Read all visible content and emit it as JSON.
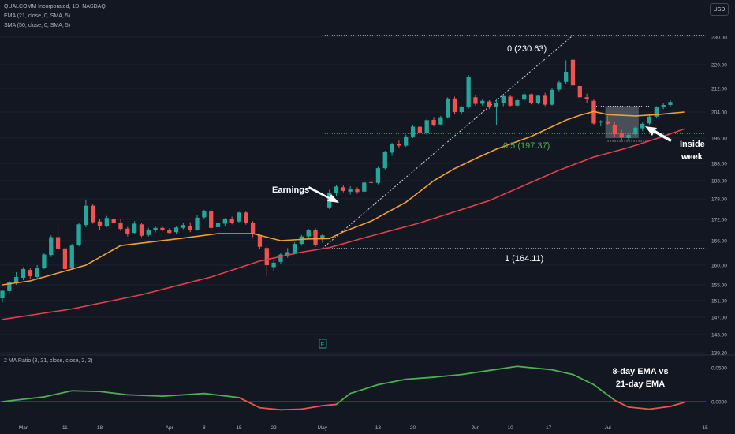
{
  "legend": {
    "symbol_line": "QUALCOMM Incorporated, 1D, NASDAQ",
    "ema_line": "EMA (21, close, 0, SMA, 5)",
    "sma_line": "SMA (50, close, 0, SMA, 5)",
    "indicator_line": "2 MA Ratio (8, 21, close, close, 2, 2)"
  },
  "currency_label": "USD",
  "colors": {
    "background": "#131722",
    "up": "#26a69a",
    "down": "#ef5350",
    "ema21": "#f0a030",
    "sma50": "#e0404a",
    "ratio": "#4caf50",
    "ratio_negative": "#ef5350",
    "zero_line": "#2962ff",
    "fib_level": "#4caf50",
    "earnings_marker": "#26a69a"
  },
  "chart_data": {
    "type": "candlestick",
    "price_axis_ticks": [
      "230.00",
      "220.00",
      "212.00",
      "204.00",
      "196.00",
      "188.00",
      "183.00",
      "178.00",
      "172.00",
      "166.00",
      "160.00",
      "155.00",
      "151.00",
      "147.00",
      "143.00",
      "139.20"
    ],
    "indicator_axis_ticks": [
      "0.0500",
      "0.0000"
    ],
    "x_tick_labels": [
      "Mar",
      "11",
      "18",
      "Apr",
      "8",
      "15",
      "22",
      "May",
      "13",
      "20",
      "Jun",
      "10",
      "17",
      "Jul",
      "15"
    ],
    "candles": [
      [
        "Feb 27",
        151.6,
        153.8,
        150.6,
        153.5
      ],
      [
        "Feb 28",
        153.4,
        156.0,
        152.8,
        155.8
      ],
      [
        "Feb 29",
        155.6,
        158.2,
        155.0,
        157.0
      ],
      [
        "Mar 1",
        156.8,
        159.5,
        156.2,
        159.0
      ],
      [
        "Mar 4",
        158.8,
        159.4,
        156.5,
        157.2
      ],
      [
        "Mar 5",
        157.0,
        160.0,
        156.4,
        159.2
      ],
      [
        "Mar 6",
        159.4,
        163.0,
        159.0,
        162.6
      ],
      [
        "Mar 7",
        162.5,
        167.5,
        162.0,
        167.0
      ],
      [
        "Mar 8",
        167.0,
        170.2,
        163.5,
        164.0
      ],
      [
        "Mar 11",
        164.1,
        164.4,
        158.5,
        159.0
      ],
      [
        "Mar 12",
        159.2,
        165.2,
        158.8,
        164.8
      ],
      [
        "Mar 13",
        165.0,
        171.0,
        164.6,
        170.6
      ],
      [
        "Mar 14",
        170.4,
        177.8,
        169.8,
        176.0
      ],
      [
        "Mar 15",
        176.0,
        176.5,
        170.8,
        171.2
      ],
      [
        "Mar 18",
        171.4,
        172.2,
        169.0,
        170.0
      ],
      [
        "Mar 19",
        170.2,
        173.0,
        169.8,
        172.4
      ],
      [
        "Mar 20",
        172.0,
        172.3,
        170.8,
        171.0
      ],
      [
        "Mar 21",
        171.0,
        172.0,
        168.7,
        169.3
      ],
      [
        "Mar 22",
        169.4,
        169.9,
        167.2,
        168.0
      ],
      [
        "Mar 25",
        168.2,
        171.5,
        167.8,
        170.8
      ],
      [
        "Mar 26",
        170.6,
        170.9,
        167.0,
        167.4
      ],
      [
        "Mar 27",
        167.6,
        169.6,
        167.2,
        169.0
      ],
      [
        "Mar 28",
        169.0,
        170.2,
        168.3,
        169.6
      ],
      [
        "Mar 29",
        169.6,
        170.1,
        168.6,
        169.0
      ],
      [
        "Apr 1",
        169.0,
        169.5,
        167.8,
        168.2
      ],
      [
        "Apr 2",
        168.4,
        170.0,
        168.0,
        169.7
      ],
      [
        "Apr 3",
        169.6,
        171.0,
        169.2,
        170.4
      ],
      [
        "Apr 4",
        170.2,
        171.2,
        168.4,
        169.0
      ],
      [
        "Apr 5",
        169.0,
        173.2,
        168.8,
        172.5
      ],
      [
        "Apr 8",
        172.6,
        174.8,
        172.2,
        174.5
      ],
      [
        "Apr 9",
        174.4,
        175.0,
        169.0,
        169.6
      ],
      [
        "Apr 10",
        169.8,
        171.2,
        168.8,
        170.9
      ],
      [
        "Apr 11",
        170.8,
        172.4,
        170.2,
        172.2
      ],
      [
        "Apr 12",
        172.0,
        172.8,
        170.6,
        171.0
      ],
      [
        "Apr 15",
        171.4,
        174.2,
        171.0,
        174.0
      ],
      [
        "Apr 16",
        174.0,
        174.5,
        170.5,
        170.9
      ],
      [
        "Apr 17",
        171.0,
        171.5,
        167.0,
        167.8
      ],
      [
        "Apr 18",
        167.6,
        168.0,
        164.0,
        164.5
      ],
      [
        "Apr 19",
        164.2,
        164.6,
        157.2,
        160.0
      ],
      [
        "Apr 22",
        159.5,
        161.2,
        158.5,
        160.6
      ],
      [
        "Apr 23",
        160.8,
        163.0,
        160.4,
        162.6
      ],
      [
        "Apr 24",
        162.4,
        164.2,
        161.8,
        163.2
      ],
      [
        "Apr 25",
        163.0,
        165.6,
        162.6,
        165.2
      ],
      [
        "Apr 26",
        165.2,
        167.6,
        164.8,
        167.2
      ],
      [
        "Apr 29",
        167.2,
        169.3,
        166.6,
        169.0
      ],
      [
        "Apr 30",
        169.0,
        169.5,
        164.5,
        165.0
      ],
      [
        "May 1",
        166.4,
        168.0,
        165.5,
        167.5
      ],
      [
        "May 2",
        175.5,
        180.5,
        175.0,
        179.6
      ],
      [
        "May 3",
        179.6,
        181.8,
        178.8,
        181.4
      ],
      [
        "May 6",
        181.2,
        181.8,
        179.8,
        180.2
      ],
      [
        "May 7",
        180.0,
        181.5,
        179.2,
        180.6
      ],
      [
        "May 8",
        180.6,
        181.2,
        179.4,
        179.9
      ],
      [
        "May 9",
        180.0,
        183.0,
        179.8,
        182.5
      ],
      [
        "May 10",
        182.6,
        183.6,
        181.8,
        182.4
      ],
      [
        "May 13",
        182.4,
        187.0,
        182.0,
        186.6
      ],
      [
        "May 14",
        186.6,
        192.0,
        186.2,
        191.5
      ],
      [
        "May 15",
        191.4,
        194.5,
        190.4,
        194.0
      ],
      [
        "May 16",
        194.0,
        195.2,
        193.0,
        193.6
      ],
      [
        "May 17",
        193.6,
        197.0,
        193.2,
        196.5
      ],
      [
        "May 20",
        196.5,
        200.0,
        196.0,
        199.5
      ],
      [
        "May 21",
        199.5,
        199.8,
        197.0,
        197.5
      ],
      [
        "May 22",
        197.4,
        202.0,
        197.0,
        201.5
      ],
      [
        "May 23",
        201.6,
        202.5,
        199.6,
        200.0
      ],
      [
        "May 24",
        200.2,
        202.8,
        199.8,
        202.4
      ],
      [
        "May 28",
        202.4,
        209.0,
        202.0,
        208.6
      ],
      [
        "May 29",
        208.6,
        209.2,
        203.5,
        204.0
      ],
      [
        "May 30",
        204.0,
        206.0,
        203.4,
        205.6
      ],
      [
        "May 31",
        205.6,
        216.5,
        205.2,
        215.8
      ],
      [
        "Jun 3",
        209.0,
        209.6,
        206.2,
        206.8
      ],
      [
        "Jun 4",
        206.8,
        208.5,
        206.2,
        207.8
      ],
      [
        "Jun 5",
        207.6,
        208.0,
        205.0,
        205.6
      ],
      [
        "Jun 6",
        205.8,
        208.6,
        200.0,
        207.0
      ],
      [
        "Jun 7",
        207.0,
        210.0,
        206.0,
        209.4
      ],
      [
        "Jun 10",
        209.2,
        209.8,
        205.6,
        206.2
      ],
      [
        "Jun 11",
        206.2,
        208.6,
        205.8,
        208.0
      ],
      [
        "Jun 12",
        208.2,
        210.6,
        207.6,
        210.0
      ],
      [
        "Jun 13",
        210.0,
        210.2,
        206.6,
        207.2
      ],
      [
        "Jun 14",
        207.2,
        209.8,
        206.6,
        209.5
      ],
      [
        "Jun 17",
        209.5,
        210.5,
        206.0,
        206.5
      ],
      [
        "Jun 18",
        206.5,
        212.2,
        206.2,
        211.5
      ],
      [
        "Jun 20",
        211.6,
        214.5,
        211.0,
        214.0
      ],
      [
        "Jun 21",
        214.2,
        221.6,
        213.6,
        217.6
      ],
      [
        "Jun 24",
        221.8,
        224.2,
        212.5,
        213.0
      ],
      [
        "Jun 25",
        212.8,
        213.2,
        208.5,
        209.0
      ],
      [
        "Jun 26",
        209.0,
        210.2,
        207.2,
        208.5
      ],
      [
        "Jun 27",
        207.8,
        208.4,
        200.0,
        200.5
      ],
      [
        "Jun 28",
        200.8,
        201.5,
        199.6,
        201.2
      ],
      [
        "Jul 1",
        201.2,
        202.8,
        200.0,
        200.4
      ],
      [
        "Jul 2",
        200.0,
        200.8,
        196.5,
        197.2
      ],
      [
        "Jul 3",
        197.4,
        198.5,
        195.5,
        196.2
      ],
      [
        "Jul 5",
        196.0,
        197.4,
        195.0,
        197.0
      ],
      [
        "Jul 8",
        197.2,
        199.6,
        196.8,
        199.2
      ],
      [
        "Jul 9",
        199.0,
        200.8,
        198.2,
        200.4
      ],
      [
        "Jul 10",
        200.5,
        203.2,
        200.0,
        202.6
      ],
      [
        "Jul 11",
        202.6,
        206.0,
        202.2,
        205.6
      ],
      [
        "Jul 12",
        205.6,
        207.0,
        205.0,
        206.4
      ],
      [
        "Jul 15",
        206.4,
        208.0,
        205.8,
        207.4
      ]
    ],
    "ema21": [
      [
        0,
        155.0
      ],
      [
        4,
        156.0
      ],
      [
        12,
        160.0
      ],
      [
        17,
        164.8
      ],
      [
        25,
        166.5
      ],
      [
        31,
        168.0
      ],
      [
        36,
        168.0
      ],
      [
        40,
        166.0
      ],
      [
        44,
        166.5
      ],
      [
        47,
        166.6
      ],
      [
        49,
        168.5
      ],
      [
        53,
        171.5
      ],
      [
        58,
        177.0
      ],
      [
        62,
        183.0
      ],
      [
        65,
        186.5
      ],
      [
        68,
        189.5
      ],
      [
        71,
        192.5
      ],
      [
        76,
        196.5
      ],
      [
        81,
        201.5
      ],
      [
        83,
        203.0
      ],
      [
        85,
        204.2
      ],
      [
        87,
        203.2
      ],
      [
        91,
        202.8
      ],
      [
        94,
        203.2
      ],
      [
        98,
        204.0
      ]
    ],
    "sma50": [
      [
        0,
        146.5
      ],
      [
        10,
        149.0
      ],
      [
        20,
        152.5
      ],
      [
        30,
        157.0
      ],
      [
        37,
        161.0
      ],
      [
        43,
        163.2
      ],
      [
        47,
        164.3
      ],
      [
        52,
        166.8
      ],
      [
        60,
        171.0
      ],
      [
        70,
        177.5
      ],
      [
        80,
        186.0
      ],
      [
        85,
        190.0
      ],
      [
        90,
        193.0
      ],
      [
        95,
        196.5
      ],
      [
        98,
        198.8
      ]
    ],
    "ratio": [
      [
        0,
        0.0
      ],
      [
        6,
        0.007
      ],
      [
        10,
        0.016
      ],
      [
        14,
        0.015
      ],
      [
        18,
        0.01
      ],
      [
        23,
        0.008
      ],
      [
        29,
        0.012
      ],
      [
        34,
        0.006
      ],
      [
        37,
        -0.009
      ],
      [
        40,
        -0.012
      ],
      [
        43,
        -0.011
      ],
      [
        46,
        -0.006
      ],
      [
        48,
        -0.004
      ],
      [
        50,
        0.012
      ],
      [
        54,
        0.025
      ],
      [
        58,
        0.033
      ],
      [
        62,
        0.036
      ],
      [
        66,
        0.04
      ],
      [
        70,
        0.046
      ],
      [
        74,
        0.052
      ],
      [
        79,
        0.047
      ],
      [
        82,
        0.04
      ],
      [
        85,
        0.025
      ],
      [
        88,
        0.002
      ],
      [
        90,
        -0.008
      ],
      [
        93,
        -0.011
      ],
      [
        96,
        -0.007
      ],
      [
        98,
        -0.001
      ]
    ],
    "fib": {
      "high": {
        "value": 230.63,
        "label": "0 (230.63)"
      },
      "mid": {
        "value": 197.37,
        "label": "0.5 (197.37)"
      },
      "low": {
        "value": 164.11,
        "label": "1 (164.11)"
      },
      "trend_start": [
        "May 1",
        164.11
      ],
      "trend_end": [
        "Jun 24",
        230.63
      ]
    },
    "inside_week_box": {
      "from": "Jul 1",
      "to": "Jul 8",
      "low": 196.0,
      "high": 206.0
    },
    "ref_lines": [
      {
        "from": "Jun 27",
        "to": "Jul 8",
        "value": 206.0
      },
      {
        "from": "Jul 1",
        "to": "Jul 8",
        "value": 195.0
      }
    ],
    "earnings_marker_label": "E"
  },
  "annotations": {
    "earnings": "Earnings",
    "inside_week_line1": "Inside",
    "inside_week_line2": "week",
    "ratio_note_line1": "8-day EMA vs",
    "ratio_note_line2": "21-day EMA"
  }
}
